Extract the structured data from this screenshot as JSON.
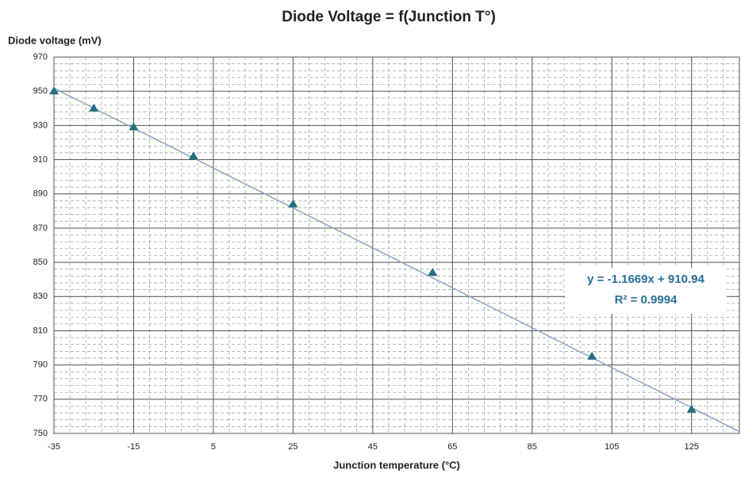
{
  "chart_data": {
    "type": "scatter",
    "title": "Diode Voltage = f(Junction T°)",
    "y_label": "Diode voltage (mV)",
    "x_label": "Junction temperature (°C)",
    "x": [
      -35,
      -25,
      -15,
      0,
      25,
      60,
      100,
      125
    ],
    "values": [
      950,
      940,
      929,
      912,
      884,
      844,
      795,
      764
    ],
    "color": "#226f80",
    "xlim": [
      -35,
      137
    ],
    "ylim": [
      750,
      970
    ],
    "xticks": [
      -35,
      -15,
      5,
      25,
      45,
      65,
      85,
      105,
      125
    ],
    "yticks": [
      750,
      770,
      790,
      810,
      830,
      850,
      870,
      890,
      910,
      930,
      950,
      970
    ],
    "x_minor_step": 4,
    "y_minor_step": 4,
    "grid": true,
    "trendline": {
      "slope": -1.1669,
      "intercept": 910.94,
      "color": "#8aa6c4",
      "equation": "y = -1.1669x + 910.94",
      "r2": "R² = 0.9994"
    }
  }
}
